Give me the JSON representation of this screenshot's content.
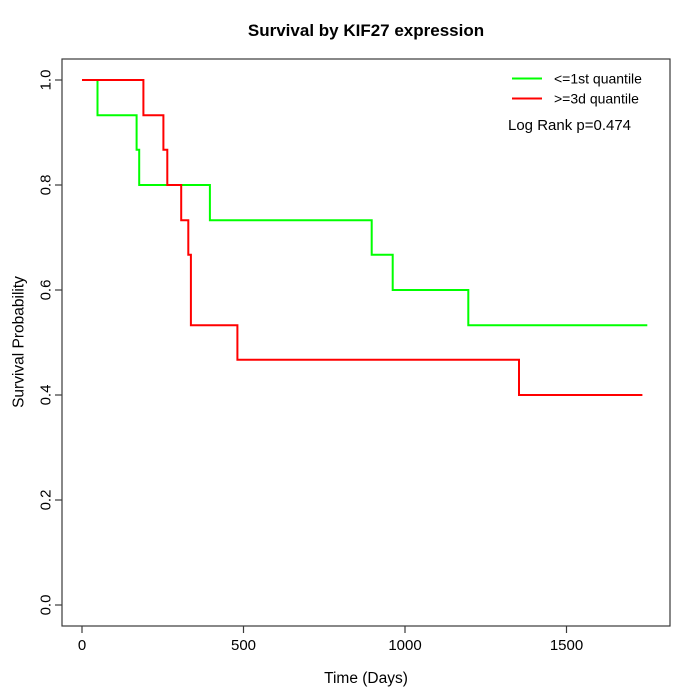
{
  "title": "Survival by KIF27 expression",
  "axes": {
    "x": {
      "label": "Time (Days)",
      "ticks": [
        0,
        500,
        1000,
        1500
      ]
    },
    "y": {
      "label": "Survival Probability",
      "ticks": [
        "0.0",
        "0.2",
        "0.4",
        "0.6",
        "0.8",
        "1.0"
      ]
    }
  },
  "legend": {
    "items": [
      {
        "label": "<=1st quantile",
        "color": "#00ff00"
      },
      {
        "label": ">=3d quantile",
        "color": "#ff0000"
      }
    ],
    "annotation": "Log Rank p=0.474"
  },
  "chart_data": {
    "type": "line",
    "subtype": "kaplan-meier-step",
    "title": "Survival by KIF27 expression",
    "xlabel": "Time (Days)",
    "ylabel": "Survival Probability",
    "xlim": [
      0,
      1820
    ],
    "ylim": [
      0.0,
      1.0
    ],
    "x_ticks": [
      0,
      500,
      1000,
      1500
    ],
    "y_ticks": [
      0.0,
      0.2,
      0.4,
      0.6,
      0.8,
      1.0
    ],
    "grid": false,
    "legend_position": "top-right-inside",
    "annotation": "Log Rank p=0.474",
    "series": [
      {
        "name": "<=1st quantile",
        "color": "#00ff00",
        "step_points": [
          [
            0,
            1.0
          ],
          [
            48,
            0.933
          ],
          [
            169,
            0.867
          ],
          [
            177,
            0.8
          ],
          [
            396,
            0.733
          ],
          [
            897,
            0.667
          ],
          [
            962,
            0.6
          ],
          [
            1196,
            0.533
          ],
          [
            1750,
            0.533
          ]
        ]
      },
      {
        "name": ">=3d quantile",
        "color": "#ff0000",
        "step_points": [
          [
            0,
            1.0
          ],
          [
            190,
            0.933
          ],
          [
            252,
            0.867
          ],
          [
            264,
            0.8
          ],
          [
            307,
            0.733
          ],
          [
            329,
            0.667
          ],
          [
            337,
            0.533
          ],
          [
            481,
            0.467
          ],
          [
            1353,
            0.4
          ],
          [
            1735,
            0.4
          ]
        ]
      }
    ]
  }
}
